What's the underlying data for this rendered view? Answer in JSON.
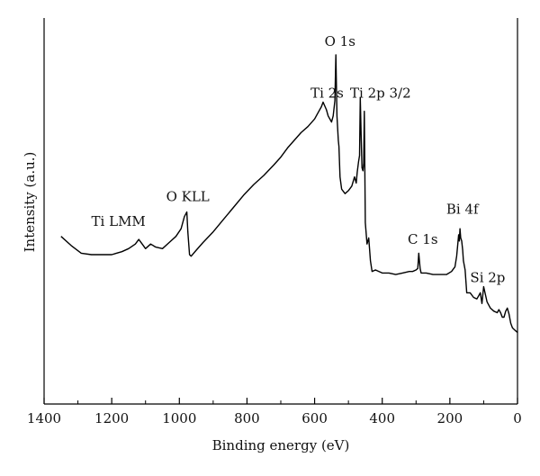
{
  "chart_data": {
    "type": "line",
    "title": "",
    "xlabel": "Binding energy (eV)",
    "ylabel": "Intensity (a.u.)",
    "xlim": [
      1400,
      0
    ],
    "x_reversed": true,
    "ylim": [
      0,
      100
    ],
    "x_ticks": [
      {
        "value": 1400,
        "label": "1400"
      },
      {
        "value": 1200,
        "label": "1200"
      },
      {
        "value": 1000,
        "label": "1000"
      },
      {
        "value": 800,
        "label": "800"
      },
      {
        "value": 600,
        "label": "600"
      },
      {
        "value": 400,
        "label": "400"
      },
      {
        "value": 200,
        "label": "200"
      },
      {
        "value": 0,
        "label": "0"
      }
    ],
    "grid": false,
    "legend": "none",
    "line_color": "#000000",
    "series": [
      {
        "x": [
          1350,
          1320,
          1290,
          1260,
          1230,
          1200,
          1170,
          1150,
          1130,
          1120,
          1110,
          1100,
          1085,
          1070,
          1050,
          1030,
          1010,
          995,
          985,
          978,
          975,
          970,
          965,
          950,
          930,
          900,
          870,
          840,
          810,
          780,
          750,
          720,
          700,
          680,
          660,
          640,
          620,
          600,
          590,
          580,
          575,
          565,
          560,
          550,
          545,
          540,
          537,
          534,
          530,
          528,
          525,
          520,
          510,
          500,
          490,
          482,
          477,
          474,
          470,
          467,
          465,
          462,
          460,
          457,
          455,
          453,
          450,
          445,
          440,
          435,
          430,
          420,
          400,
          380,
          360,
          340,
          320,
          310,
          300,
          295,
          292,
          288,
          285,
          280,
          270,
          250,
          230,
          210,
          195,
          185,
          180,
          177,
          174,
          172,
          170,
          168,
          165,
          162,
          160,
          155,
          150,
          140,
          130,
          120,
          115,
          110,
          105,
          100,
          90,
          80,
          70,
          60,
          55,
          50,
          45,
          40,
          35,
          30,
          25,
          20,
          15,
          10,
          5,
          0
        ],
        "y": [
          40.5,
          37.5,
          35,
          34.5,
          34.5,
          34.5,
          35.5,
          36.5,
          38,
          39.5,
          38,
          36.5,
          38,
          37,
          36.5,
          38.5,
          40.5,
          43,
          47,
          48.5,
          42,
          34.5,
          34,
          36,
          38.5,
          42,
          46,
          50,
          54,
          57.5,
          60.5,
          64,
          66.5,
          69.5,
          72,
          74.5,
          76.5,
          79,
          81,
          83,
          84.5,
          82,
          80,
          78,
          80,
          85,
          100,
          80,
          72,
          70,
          60,
          56,
          54.5,
          55.5,
          57,
          60,
          58,
          61.5,
          65,
          67,
          86,
          72,
          63,
          62,
          64.5,
          81.5,
          45,
          38,
          40,
          32.5,
          29,
          29.5,
          28.5,
          28.5,
          28,
          28.5,
          29,
          29,
          29.5,
          30,
          35,
          30,
          28.5,
          28.5,
          28.5,
          28,
          28,
          28,
          29,
          30.5,
          34,
          37.5,
          41,
          39,
          43,
          40,
          39,
          36,
          32.5,
          29.5,
          22,
          22,
          20.5,
          20,
          21,
          22,
          18.5,
          24,
          19,
          17,
          16,
          15.5,
          16.5,
          15.5,
          14,
          14,
          16,
          17,
          15,
          12,
          10.5,
          10,
          9.5,
          9
        ]
      }
    ],
    "annotations": [
      {
        "text": "Ti LMM",
        "x": 1180,
        "y": 44
      },
      {
        "text": "O KLL",
        "x": 975,
        "y": 52
      },
      {
        "text": "Ti 2s",
        "x": 563,
        "y": 86
      },
      {
        "text": "O 1s",
        "x": 525,
        "y": 103
      },
      {
        "text": "Ti 2p 3/2",
        "x": 405,
        "y": 86
      },
      {
        "text": "C 1s",
        "x": 280,
        "y": 38
      },
      {
        "text": "Bi 4f",
        "x": 163,
        "y": 48
      },
      {
        "text": "Si 2p",
        "x": 88,
        "y": 25.5
      }
    ]
  }
}
